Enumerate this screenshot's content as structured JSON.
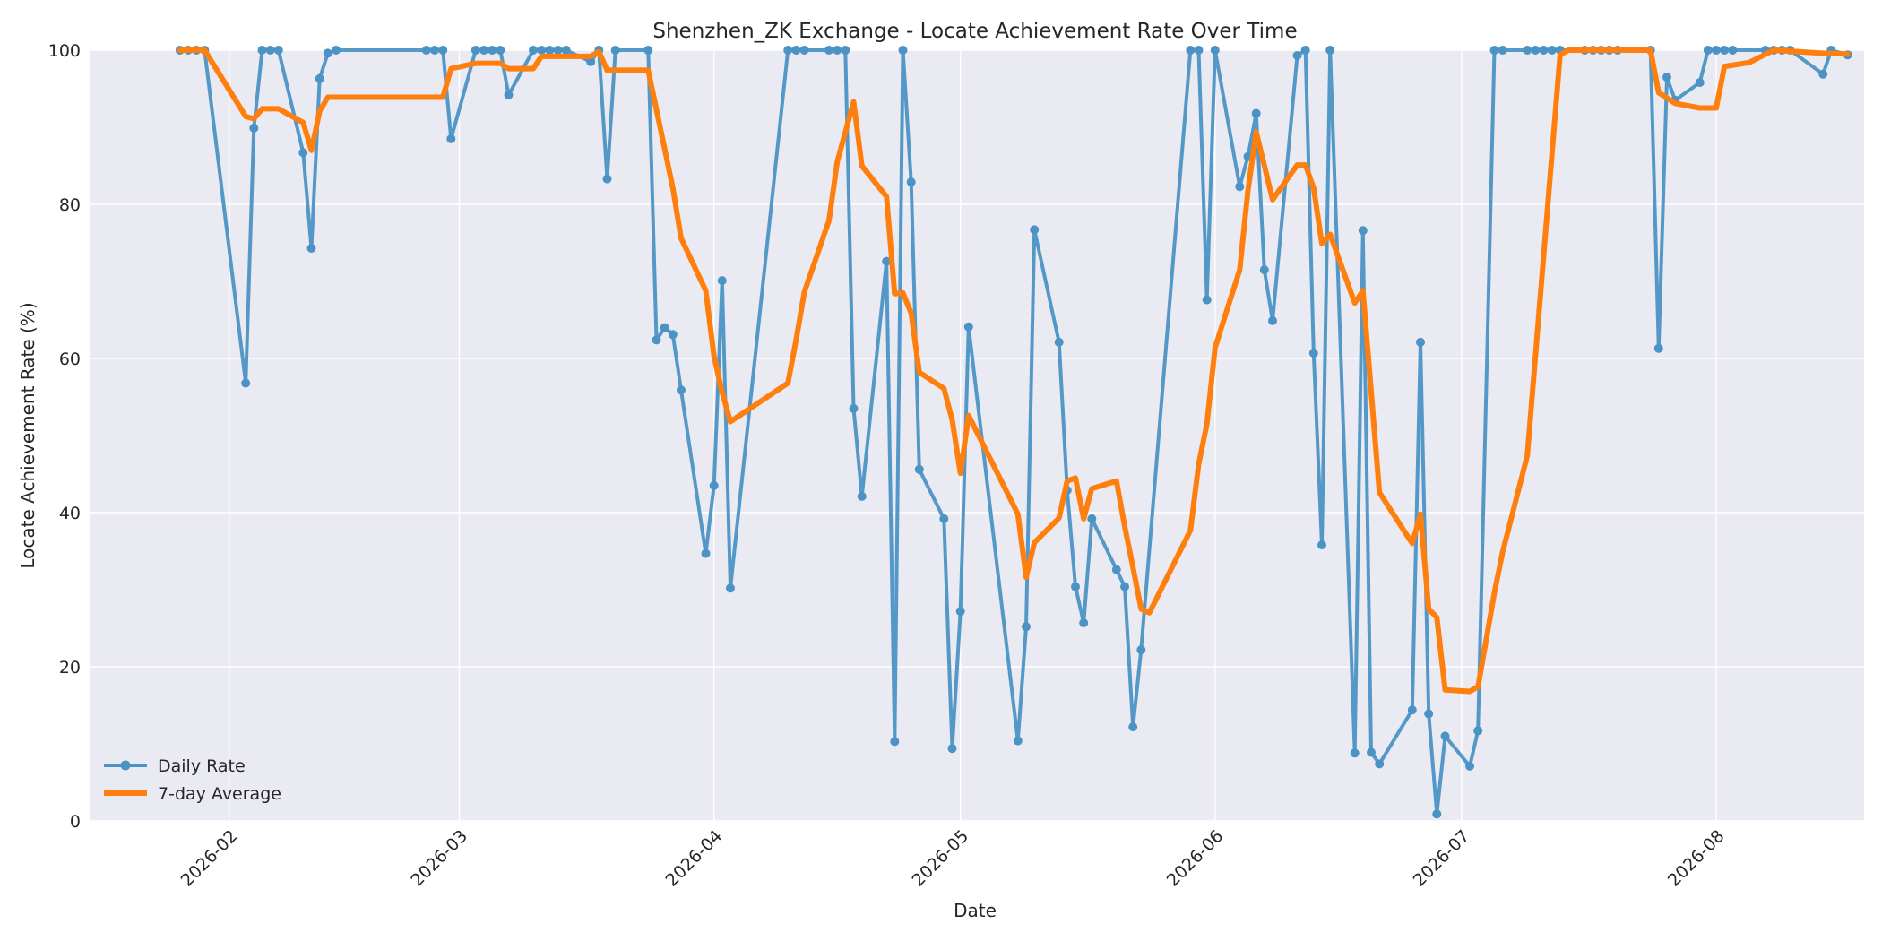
{
  "chart_data": {
    "type": "line",
    "title": "Shenzhen_ZK Exchange - Locate Achievement Rate Over Time",
    "xlabel": "Date",
    "ylabel": "Locate Achievement Rate (%)",
    "xlim": [
      "2026-01-15",
      "2026-08-19"
    ],
    "ylim": [
      0,
      100
    ],
    "x_ticks": [
      "2026-02",
      "2026-03",
      "2026-04",
      "2026-05",
      "2026-06",
      "2026-07",
      "2026-08"
    ],
    "y_ticks": [
      0,
      20,
      40,
      60,
      80,
      100
    ],
    "grid": true,
    "legend_position": "lower-left",
    "colors": {
      "daily": "#4c93c5",
      "avg": "#ff7f0e",
      "background": "#eaeaf2"
    },
    "series": [
      {
        "name": "Daily Rate",
        "style": "line-markers",
        "points": [
          [
            "2026-01-26",
            100
          ],
          [
            "2026-01-27",
            100
          ],
          [
            "2026-01-28",
            100
          ],
          [
            "2026-01-29",
            100
          ],
          [
            "2026-02-03",
            56.8
          ],
          [
            "2026-02-04",
            89.9
          ],
          [
            "2026-02-05",
            100
          ],
          [
            "2026-02-06",
            100
          ],
          [
            "2026-02-07",
            100
          ],
          [
            "2026-02-10",
            86.7
          ],
          [
            "2026-02-11",
            74.3
          ],
          [
            "2026-02-12",
            96.3
          ],
          [
            "2026-02-13",
            99.6
          ],
          [
            "2026-02-14",
            100
          ],
          [
            "2026-02-25",
            100
          ],
          [
            "2026-02-26",
            100
          ],
          [
            "2026-02-27",
            100
          ],
          [
            "2026-02-28",
            88.5
          ],
          [
            "2026-03-03",
            100
          ],
          [
            "2026-03-04",
            100
          ],
          [
            "2026-03-05",
            100
          ],
          [
            "2026-03-06",
            100
          ],
          [
            "2026-03-07",
            94.2
          ],
          [
            "2026-03-10",
            100
          ],
          [
            "2026-03-11",
            100
          ],
          [
            "2026-03-12",
            100
          ],
          [
            "2026-03-13",
            100
          ],
          [
            "2026-03-14",
            100
          ],
          [
            "2026-03-17",
            98.5
          ],
          [
            "2026-03-18",
            100
          ],
          [
            "2026-03-19",
            83.3
          ],
          [
            "2026-03-20",
            100
          ],
          [
            "2026-03-24",
            100
          ],
          [
            "2026-03-25",
            62.4
          ],
          [
            "2026-03-26",
            64
          ],
          [
            "2026-03-27",
            63.1
          ],
          [
            "2026-03-28",
            55.9
          ],
          [
            "2026-03-31",
            34.7
          ],
          [
            "2026-04-01",
            43.5
          ],
          [
            "2026-04-02",
            70.1
          ],
          [
            "2026-04-03",
            30.2
          ],
          [
            "2026-04-10",
            100
          ],
          [
            "2026-04-11",
            100
          ],
          [
            "2026-04-12",
            100
          ],
          [
            "2026-04-15",
            100
          ],
          [
            "2026-04-16",
            100
          ],
          [
            "2026-04-17",
            100
          ],
          [
            "2026-04-18",
            53.5
          ],
          [
            "2026-04-19",
            42.1
          ],
          [
            "2026-04-22",
            72.6
          ],
          [
            "2026-04-23",
            10.3
          ],
          [
            "2026-04-24",
            100
          ],
          [
            "2026-04-25",
            82.9
          ],
          [
            "2026-04-26",
            45.6
          ],
          [
            "2026-04-29",
            39.2
          ],
          [
            "2026-04-30",
            9.4
          ],
          [
            "2026-05-01",
            27.2
          ],
          [
            "2026-05-02",
            64.1
          ],
          [
            "2026-05-08",
            10.4
          ],
          [
            "2026-05-09",
            25.2
          ],
          [
            "2026-05-10",
            76.7
          ],
          [
            "2026-05-13",
            62.1
          ],
          [
            "2026-05-14",
            42.9
          ],
          [
            "2026-05-15",
            30.4
          ],
          [
            "2026-05-16",
            25.7
          ],
          [
            "2026-05-17",
            39.2
          ],
          [
            "2026-05-20",
            32.6
          ],
          [
            "2026-05-21",
            30.4
          ],
          [
            "2026-05-22",
            12.2
          ],
          [
            "2026-05-23",
            22.2
          ],
          [
            "2026-05-29",
            100
          ],
          [
            "2026-05-30",
            100
          ],
          [
            "2026-05-31",
            67.6
          ],
          [
            "2026-06-01",
            100
          ],
          [
            "2026-06-04",
            82.3
          ],
          [
            "2026-06-05",
            86.2
          ],
          [
            "2026-06-06",
            91.8
          ],
          [
            "2026-06-07",
            71.5
          ],
          [
            "2026-06-08",
            64.9
          ],
          [
            "2026-06-11",
            99.3
          ],
          [
            "2026-06-12",
            100
          ],
          [
            "2026-06-13",
            60.7
          ],
          [
            "2026-06-14",
            35.8
          ],
          [
            "2026-06-15",
            100
          ],
          [
            "2026-06-18",
            8.8
          ],
          [
            "2026-06-19",
            76.6
          ],
          [
            "2026-06-20",
            8.9
          ],
          [
            "2026-06-21",
            7.4
          ],
          [
            "2026-06-25",
            14.4
          ],
          [
            "2026-06-26",
            62.1
          ],
          [
            "2026-06-27",
            13.9
          ],
          [
            "2026-06-28",
            0.9
          ],
          [
            "2026-06-29",
            11
          ],
          [
            "2026-07-02",
            7.1
          ],
          [
            "2026-07-03",
            11.7
          ],
          [
            "2026-07-05",
            100
          ],
          [
            "2026-07-06",
            100
          ],
          [
            "2026-07-09",
            100
          ],
          [
            "2026-07-10",
            100
          ],
          [
            "2026-07-11",
            100
          ],
          [
            "2026-07-12",
            100
          ],
          [
            "2026-07-13",
            100
          ],
          [
            "2026-07-16",
            100
          ],
          [
            "2026-07-17",
            100
          ],
          [
            "2026-07-18",
            100
          ],
          [
            "2026-07-19",
            100
          ],
          [
            "2026-07-20",
            100
          ],
          [
            "2026-07-24",
            100
          ],
          [
            "2026-07-25",
            61.3
          ],
          [
            "2026-07-26",
            96.5
          ],
          [
            "2026-07-27",
            93.5
          ],
          [
            "2026-07-30",
            95.8
          ],
          [
            "2026-07-31",
            100
          ],
          [
            "2026-08-01",
            100
          ],
          [
            "2026-08-02",
            100
          ],
          [
            "2026-08-03",
            100
          ],
          [
            "2026-08-07",
            100
          ],
          [
            "2026-08-08",
            100
          ],
          [
            "2026-08-09",
            100
          ],
          [
            "2026-08-10",
            100
          ],
          [
            "2026-08-14",
            96.9
          ],
          [
            "2026-08-15",
            100
          ],
          [
            "2026-08-17",
            99.4
          ]
        ]
      },
      {
        "name": "7-day Average",
        "style": "thick-line",
        "points": [
          [
            "2026-01-26",
            100
          ],
          [
            "2026-01-29",
            100
          ],
          [
            "2026-02-03",
            91.4
          ],
          [
            "2026-02-04",
            91.1
          ],
          [
            "2026-02-05",
            92.4
          ],
          [
            "2026-02-07",
            92.4
          ],
          [
            "2026-02-10",
            90.6
          ],
          [
            "2026-02-11",
            87
          ],
          [
            "2026-02-12",
            92.1
          ],
          [
            "2026-02-13",
            93.9
          ],
          [
            "2026-02-27",
            93.9
          ],
          [
            "2026-02-28",
            97.6
          ],
          [
            "2026-03-03",
            98.3
          ],
          [
            "2026-03-06",
            98.3
          ],
          [
            "2026-03-07",
            97.6
          ],
          [
            "2026-03-10",
            97.6
          ],
          [
            "2026-03-11",
            99.2
          ],
          [
            "2026-03-17",
            99.2
          ],
          [
            "2026-03-18",
            99.8
          ],
          [
            "2026-03-19",
            97.4
          ],
          [
            "2026-03-24",
            97.4
          ],
          [
            "2026-03-27",
            82.1
          ],
          [
            "2026-03-28",
            75.6
          ],
          [
            "2026-03-31",
            68.8
          ],
          [
            "2026-04-01",
            60.3
          ],
          [
            "2026-04-02",
            55.6
          ],
          [
            "2026-04-03",
            51.8
          ],
          [
            "2026-04-10",
            56.8
          ],
          [
            "2026-04-11",
            62.4
          ],
          [
            "2026-04-12",
            68.6
          ],
          [
            "2026-04-15",
            77.9
          ],
          [
            "2026-04-16",
            85.5
          ],
          [
            "2026-04-18",
            93.3
          ],
          [
            "2026-04-19",
            85
          ],
          [
            "2026-04-22",
            81
          ],
          [
            "2026-04-23",
            68.4
          ],
          [
            "2026-04-24",
            68.5
          ],
          [
            "2026-04-25",
            65.9
          ],
          [
            "2026-04-26",
            58.2
          ],
          [
            "2026-04-29",
            56.1
          ],
          [
            "2026-04-30",
            52
          ],
          [
            "2026-05-01",
            45.1
          ],
          [
            "2026-05-02",
            52.6
          ],
          [
            "2026-05-08",
            39.8
          ],
          [
            "2026-05-09",
            31.6
          ],
          [
            "2026-05-10",
            36.1
          ],
          [
            "2026-05-13",
            39.3
          ],
          [
            "2026-05-14",
            44.1
          ],
          [
            "2026-05-15",
            44.5
          ],
          [
            "2026-05-16",
            39.2
          ],
          [
            "2026-05-17",
            43.1
          ],
          [
            "2026-05-20",
            44.1
          ],
          [
            "2026-05-21",
            38.2
          ],
          [
            "2026-05-22",
            32.9
          ],
          [
            "2026-05-23",
            27.5
          ],
          [
            "2026-05-24",
            27
          ],
          [
            "2026-05-29",
            37.7
          ],
          [
            "2026-05-30",
            46.3
          ],
          [
            "2026-05-31",
            51.5
          ],
          [
            "2026-06-01",
            61.4
          ],
          [
            "2026-06-04",
            71.5
          ],
          [
            "2026-06-05",
            81.8
          ],
          [
            "2026-06-06",
            89.4
          ],
          [
            "2026-06-08",
            80.6
          ],
          [
            "2026-06-11",
            85.1
          ],
          [
            "2026-06-12",
            85.1
          ],
          [
            "2026-06-13",
            82.1
          ],
          [
            "2026-06-14",
            74.9
          ],
          [
            "2026-06-15",
            76.1
          ],
          [
            "2026-06-18",
            67.2
          ],
          [
            "2026-06-19",
            68.8
          ],
          [
            "2026-06-21",
            42.6
          ],
          [
            "2026-06-25",
            36
          ],
          [
            "2026-06-26",
            39.8
          ],
          [
            "2026-06-27",
            27.5
          ],
          [
            "2026-06-28",
            26.4
          ],
          [
            "2026-06-29",
            17
          ],
          [
            "2026-07-02",
            16.8
          ],
          [
            "2026-07-03",
            17.4
          ],
          [
            "2026-07-05",
            29.6
          ],
          [
            "2026-07-06",
            34.9
          ],
          [
            "2026-07-09",
            47.4
          ],
          [
            "2026-07-13",
            99.4
          ],
          [
            "2026-07-14",
            100
          ],
          [
            "2026-07-24",
            100
          ],
          [
            "2026-07-25",
            94.5
          ],
          [
            "2026-07-27",
            93.1
          ],
          [
            "2026-07-30",
            92.5
          ],
          [
            "2026-08-01",
            92.5
          ],
          [
            "2026-08-02",
            97.9
          ],
          [
            "2026-08-05",
            98.4
          ],
          [
            "2026-08-08",
            100
          ],
          [
            "2026-08-14",
            99.6
          ],
          [
            "2026-08-17",
            99.5
          ]
        ]
      }
    ]
  }
}
